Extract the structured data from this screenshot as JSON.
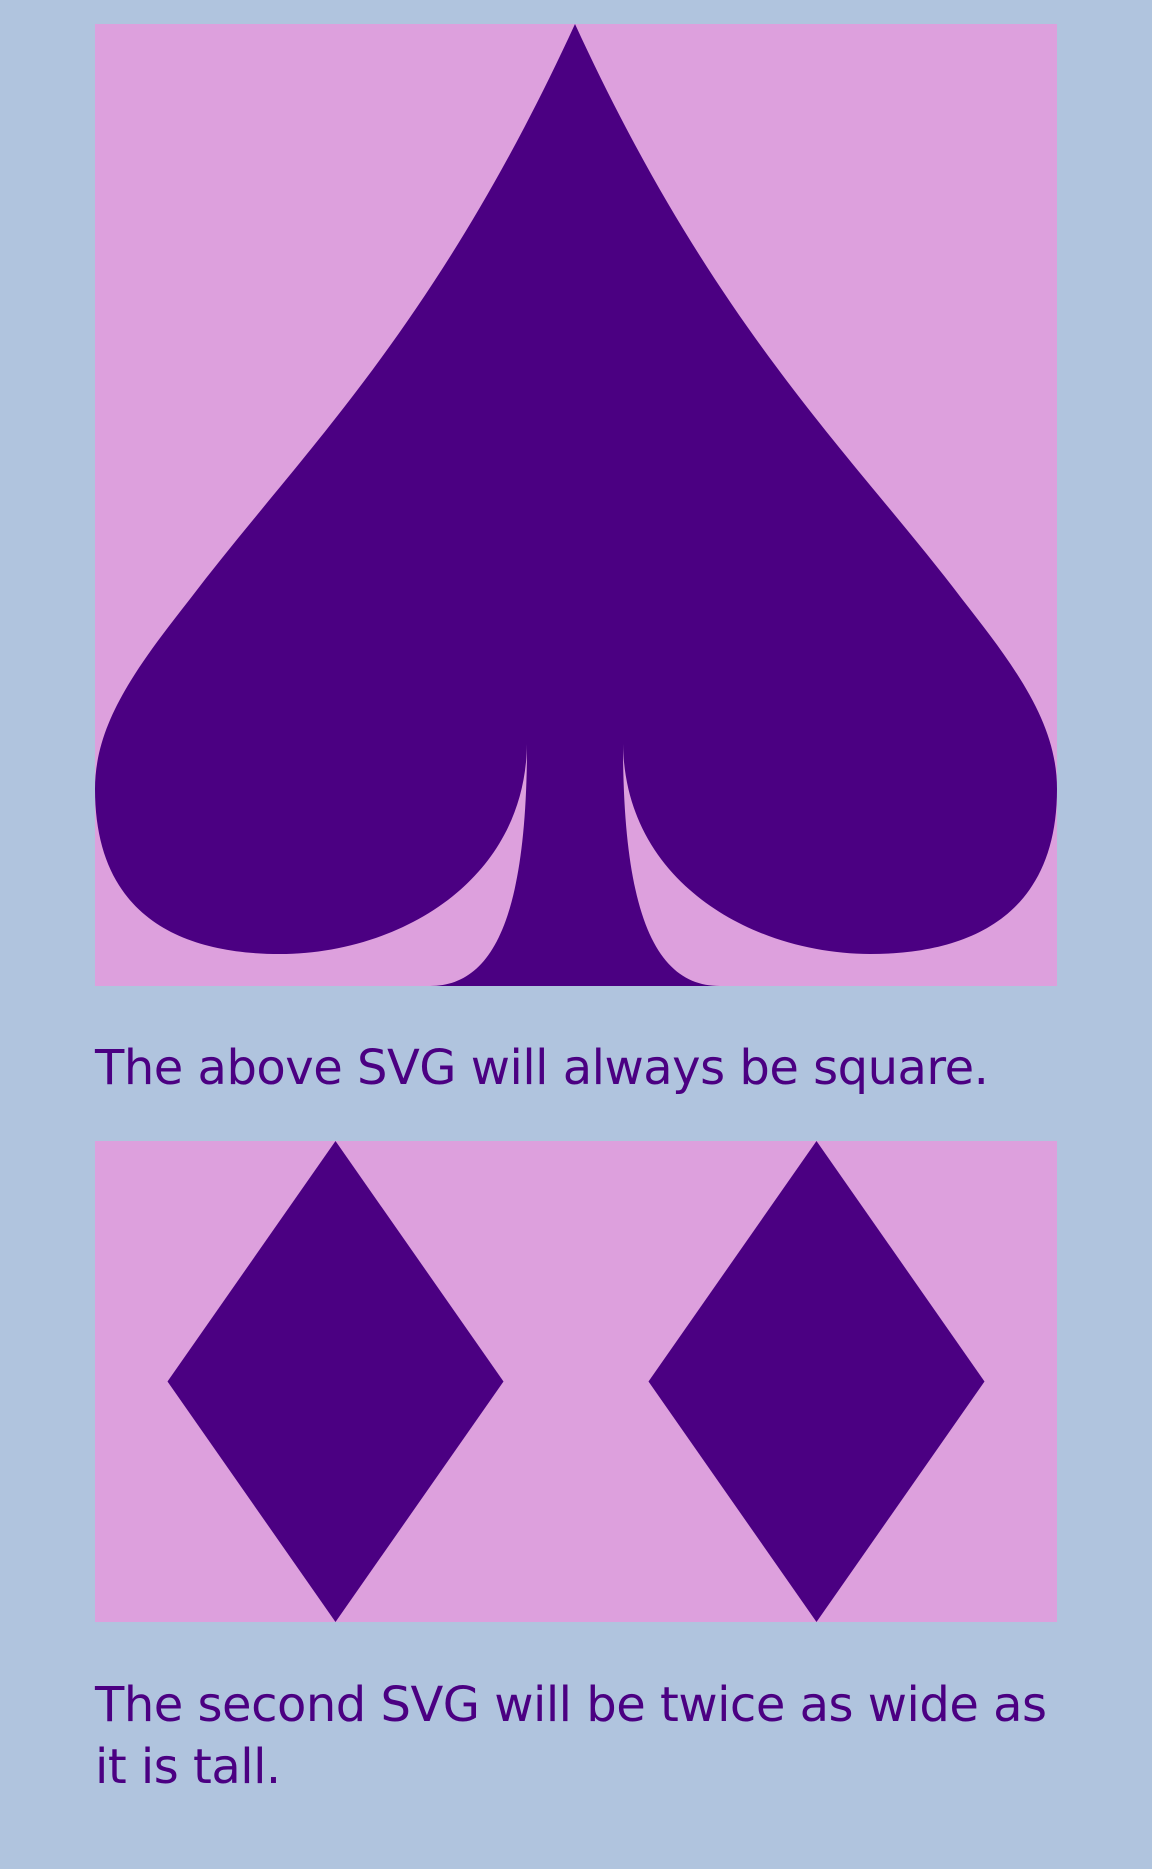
{
  "colors": {
    "page_background": "#b0c4de",
    "panel_background": "#dda0dd",
    "shape_fill": "#4b0082",
    "text": "#4b0082"
  },
  "figures": {
    "spade": {
      "icon": "spade-icon"
    },
    "diamonds": {
      "icons": [
        "diamond-icon",
        "diamond-icon"
      ]
    }
  },
  "captions": {
    "first": "The above SVG will always be square.",
    "second": "The second SVG will be twice as wide as it is tall."
  }
}
